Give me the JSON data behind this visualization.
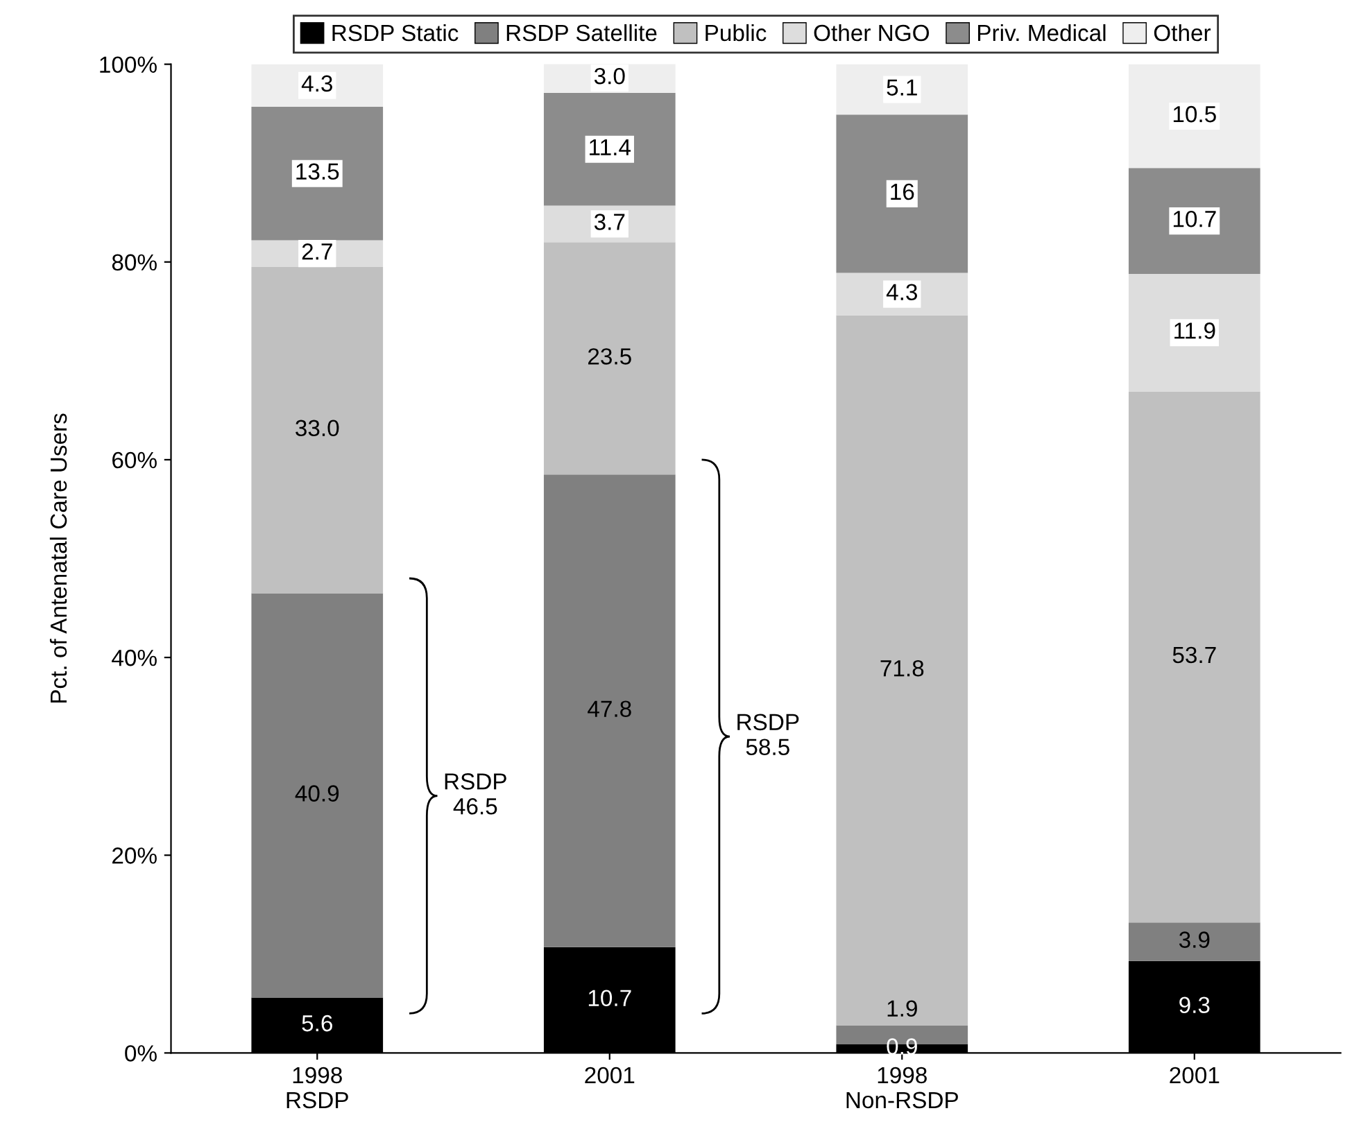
{
  "chart_data": {
    "type": "bar",
    "stacked": true,
    "ylabel": "Pct. of Antenatal Care Users",
    "categories": [
      "1998\nRSDP",
      "2001",
      "1998\nNon-RSDP",
      "2001"
    ],
    "series": [
      {
        "name": "RSDP Static",
        "color": "#000000",
        "values": [
          5.6,
          10.7,
          0.9,
          9.3
        ],
        "value_labels": [
          "5.6",
          "10.7",
          "0.9",
          "9.3"
        ]
      },
      {
        "name": "RSDP Satellite",
        "color": "#808080",
        "values": [
          40.9,
          47.8,
          1.9,
          3.9
        ],
        "value_labels": [
          "40.9",
          "47.8",
          "1.9",
          "3.9"
        ]
      },
      {
        "name": "Public",
        "color": "#c0c0c0",
        "values": [
          33.0,
          23.5,
          71.8,
          53.7
        ],
        "value_labels": [
          "33.0",
          "23.5",
          "71.8",
          "53.7"
        ]
      },
      {
        "name": "Other NGO",
        "color": "#dddddd",
        "values": [
          2.7,
          3.7,
          4.3,
          11.9
        ],
        "value_labels": [
          "2.7",
          "3.7",
          "4.3",
          "11.9"
        ]
      },
      {
        "name": "Priv. Medical",
        "color": "#8c8c8c",
        "values": [
          13.5,
          11.4,
          16,
          10.7
        ],
        "value_labels": [
          "13.5",
          "11.4",
          "16",
          "10.7"
        ]
      },
      {
        "name": "Other",
        "color": "#eeeeee",
        "values": [
          4.3,
          3.0,
          5.1,
          10.5
        ],
        "value_labels": [
          "4.3",
          "3.0",
          "5.1",
          "10.5"
        ]
      }
    ],
    "ylim": [
      0,
      100
    ],
    "yticks": [
      {
        "value": 0,
        "label": "0%"
      },
      {
        "value": 20,
        "label": "20%"
      },
      {
        "value": 40,
        "label": "40%"
      },
      {
        "value": 60,
        "label": "60%"
      },
      {
        "value": 80,
        "label": "80%"
      },
      {
        "value": 100,
        "label": "100%"
      }
    ],
    "annotations": [
      "RSDP\n46.5",
      "RSDP\n58.5"
    ],
    "legend": "top",
    "grid": false
  }
}
